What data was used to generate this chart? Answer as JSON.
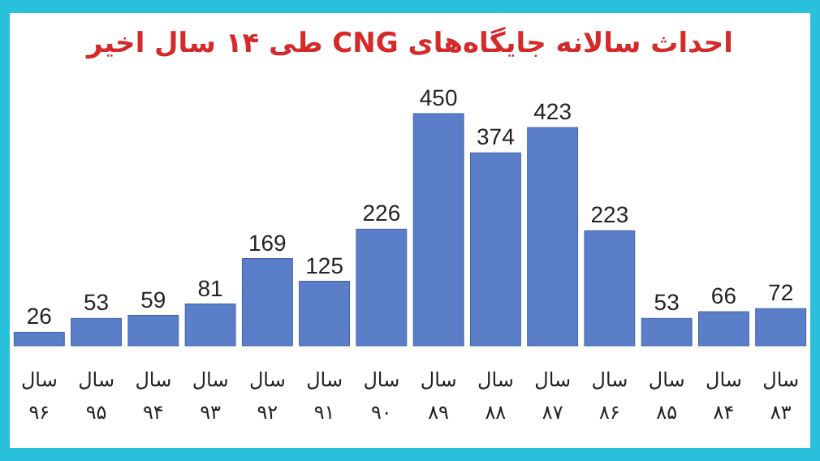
{
  "chart_data": {
    "type": "bar",
    "title": "احداث سالانه جایگاه‌های CNG طی ۱۴ سال اخیر",
    "categories": [
      "سال ۹۶",
      "سال ۹۵",
      "سال ۹۴",
      "سال ۹۳",
      "سال ۹۲",
      "سال ۹۱",
      "سال ۹۰",
      "سال ۸۹",
      "سال ۸۸",
      "سال ۸۷",
      "سال ۸۶",
      "سال ۸۵",
      "سال ۸۴",
      "سال ۸۳"
    ],
    "values": [
      26,
      53,
      59,
      81,
      169,
      125,
      226,
      450,
      374,
      423,
      223,
      53,
      66,
      72
    ],
    "color": "#5a7fc8",
    "data_labels": true
  }
}
